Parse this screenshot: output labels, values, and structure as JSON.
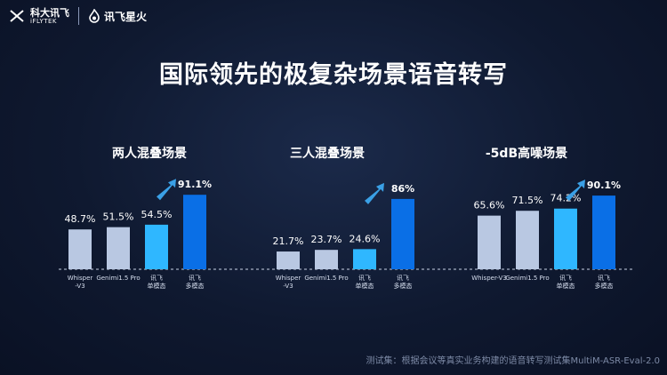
{
  "header": {
    "logo1_text": "科大讯飞",
    "logo1_sub": "iFLYTEK",
    "logo2_text": "讯飞星火"
  },
  "title": "国际领先的极复杂场景语音转写",
  "colors": {
    "bar1": "#b9c8e2",
    "bar2": "#b9c8e2",
    "bar3": "#2fb7ff",
    "bar4": "#0a6fe6",
    "arrow": "#3aa0e6"
  },
  "chart_data": [
    {
      "type": "bar",
      "title": "两人混叠场景",
      "categories": [
        "Whisper\n-V3",
        "Genimi1.5 Pro",
        "讯飞\n单模态",
        "讯飞\n多模态"
      ],
      "values": [
        48.7,
        51.5,
        54.5,
        91.1
      ],
      "value_labels": [
        "48.7%",
        "51.5%",
        "54.5%",
        "91.1%"
      ],
      "ylim": [
        0,
        100
      ]
    },
    {
      "type": "bar",
      "title": "三人混叠场景",
      "categories": [
        "Whisper\n-V3",
        "Genimi1.5 Pro",
        "讯飞\n单模态",
        "讯飞\n多模态"
      ],
      "values": [
        21.7,
        23.7,
        24.6,
        86
      ],
      "value_labels": [
        "21.7%",
        "23.7%",
        "24.6%",
        "86%"
      ],
      "ylim": [
        0,
        100
      ]
    },
    {
      "type": "bar",
      "title": "-5dB高噪场景",
      "categories": [
        "Whisper-V3",
        "Genimi1.5 Pro",
        "讯飞\n单模态",
        "讯飞\n多模态"
      ],
      "values": [
        65.6,
        71.5,
        74.2,
        90.1
      ],
      "value_labels": [
        "65.6%",
        "71.5%",
        "74.2%",
        "90.1%"
      ],
      "ylim": [
        0,
        100
      ]
    }
  ],
  "footnote": "测试集：根据会议等真实业务构建的语音转写测试集MultiM-ASR-Eval-2.0"
}
